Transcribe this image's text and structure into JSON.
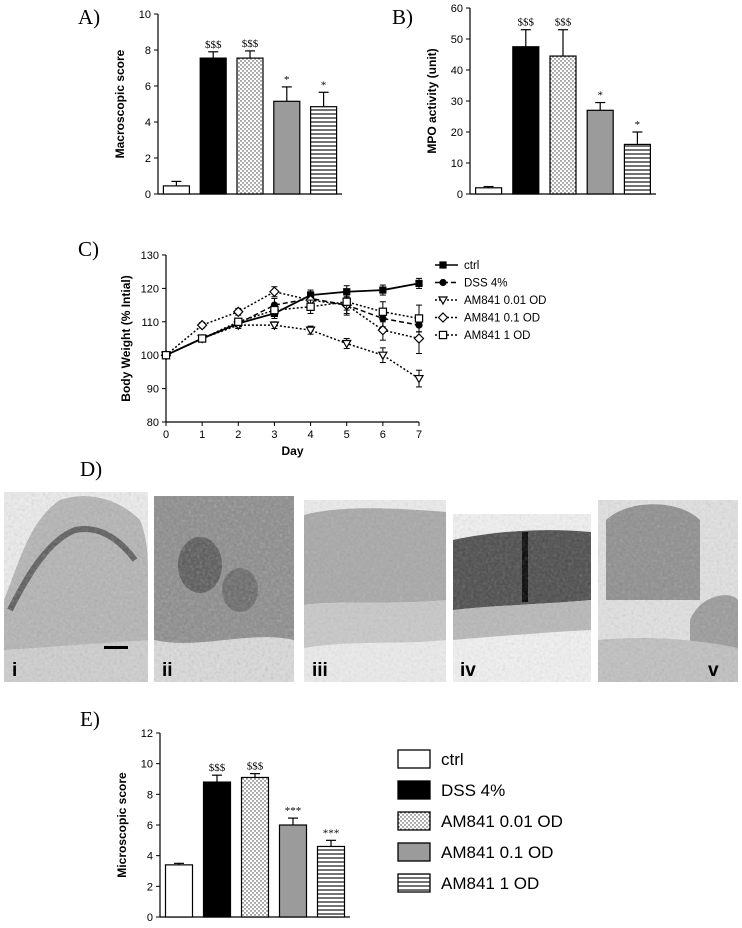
{
  "panel_labels": [
    "A)",
    "B)",
    "C)",
    "D)",
    "E)"
  ],
  "chart_data": [
    {
      "id": "A",
      "type": "bar",
      "ylabel": "Macroscopic score",
      "ylim": [
        0,
        10
      ],
      "yticks": [
        0,
        2,
        4,
        6,
        8,
        10
      ],
      "categories": [
        "ctrl",
        "DSS 4%",
        "AM841 0.01 OD",
        "AM841 0.1 OD",
        "AM841 1 OD"
      ],
      "values": [
        0.45,
        7.55,
        7.55,
        5.15,
        4.85
      ],
      "errors": [
        0.25,
        0.35,
        0.4,
        0.8,
        0.8
      ],
      "annotations": [
        "",
        "$$$",
        "$$$",
        "*",
        "*"
      ]
    },
    {
      "id": "B",
      "type": "bar",
      "ylabel": "MPO activity (unit)",
      "ylim": [
        0,
        60
      ],
      "yticks": [
        0,
        10,
        20,
        30,
        40,
        50,
        60
      ],
      "categories": [
        "ctrl",
        "DSS 4%",
        "AM841 0.01 OD",
        "AM841 0.1 OD",
        "AM841 1 OD"
      ],
      "values": [
        2.0,
        47.5,
        44.5,
        27.0,
        16.0
      ],
      "errors": [
        0.4,
        5.5,
        8.5,
        2.5,
        4.0
      ],
      "annotations": [
        "",
        "$$$",
        "$$$",
        "*",
        "*"
      ]
    },
    {
      "id": "C",
      "type": "line",
      "xlabel": "Day",
      "ylabel": "Body Weight (% Intial)",
      "xlim": [
        0,
        7
      ],
      "ylim": [
        80,
        130
      ],
      "xticks": [
        0,
        1,
        2,
        3,
        4,
        5,
        6,
        7
      ],
      "yticks": [
        80,
        90,
        100,
        110,
        120,
        130
      ],
      "x": [
        0,
        1,
        2,
        3,
        4,
        5,
        6,
        7
      ],
      "series": [
        {
          "name": "ctrl",
          "marker": "square-filled",
          "dash": "solid",
          "values": [
            100,
            105,
            109.5,
            112.5,
            118,
            119,
            119.5,
            121.5
          ],
          "errors": [
            0.6,
            0.8,
            1,
            1.5,
            1.5,
            1.8,
            1.5,
            1.5
          ]
        },
        {
          "name": "DSS 4%",
          "marker": "circle-filled",
          "dash": "dashed",
          "values": [
            100,
            105,
            109.5,
            115,
            117,
            115,
            111,
            109
          ],
          "errors": [
            0.6,
            0.8,
            1,
            2,
            2,
            3,
            2.5,
            2
          ]
        },
        {
          "name": "AM841 0.01 OD",
          "marker": "triangle-down-open",
          "dash": "dotted",
          "values": [
            100,
            105,
            109,
            109,
            107.5,
            103.5,
            100,
            93
          ],
          "errors": [
            0.6,
            0.8,
            1,
            1,
            1.2,
            1.5,
            2.2,
            2.5
          ]
        },
        {
          "name": "AM841 0.1 OD",
          "marker": "diamond-open",
          "dash": "dotted",
          "values": [
            100,
            109,
            113,
            119,
            116.5,
            115,
            107.5,
            105
          ],
          "errors": [
            0.6,
            0.8,
            1,
            1.5,
            2,
            2.5,
            3,
            4.5
          ]
        },
        {
          "name": "AM841 1 OD",
          "marker": "square-open",
          "dash": "dotted",
          "values": [
            100,
            105,
            110,
            113.5,
            114.5,
            116,
            113,
            111
          ],
          "errors": [
            0.6,
            0.8,
            1,
            1.5,
            2,
            2.5,
            3,
            4
          ]
        }
      ]
    },
    {
      "id": "E",
      "type": "bar",
      "ylabel": "Microscopic score",
      "ylim": [
        0,
        12
      ],
      "yticks": [
        0,
        2,
        4,
        6,
        8,
        10,
        12
      ],
      "categories": [
        "ctrl",
        "DSS 4%",
        "AM841 0.01 OD",
        "AM841 0.1 OD",
        "AM841 1 OD"
      ],
      "values": [
        3.4,
        8.8,
        9.1,
        6.0,
        4.6
      ],
      "errors": [
        0.1,
        0.45,
        0.25,
        0.45,
        0.4
      ],
      "annotations": [
        "",
        "$$$",
        "$$$",
        "***",
        "***"
      ]
    }
  ],
  "micrograph_labels": [
    "i",
    "ii",
    "iii",
    "iv",
    "v"
  ],
  "bar_legend": {
    "entries": [
      "ctrl",
      "DSS 4%",
      "AM841 0.01 OD",
      "AM841 0.1 OD",
      "AM841 1 OD"
    ],
    "fills": [
      "white",
      "black",
      "dotted",
      "gray",
      "horizontal-lines"
    ]
  },
  "colors": {
    "gray_bar": "#9b9b9b",
    "black": "#000000",
    "tissue_light": "#e6e6e6"
  }
}
